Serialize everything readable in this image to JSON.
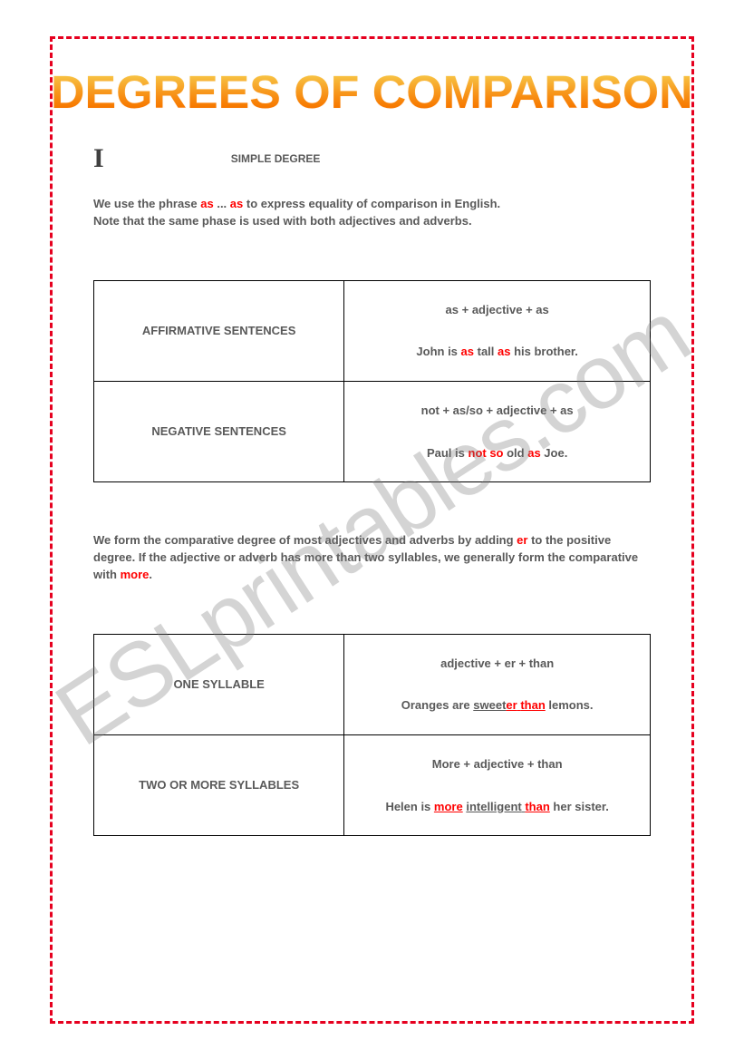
{
  "title": "DEGREES OF COMPARISON",
  "section": {
    "roman": "I",
    "label": "SIMPLE DEGREE"
  },
  "intro1": {
    "pre": "We use the phrase ",
    "as1": "as",
    "mid": " ... ",
    "as2": "as",
    "post": " to express equality of comparison in English.",
    "note": " Note that the same phase is used with both adjectives and adverbs."
  },
  "table1": {
    "r1_left": "AFFIRMATIVE SENTENCES",
    "r1_formula": "as + adjective + as",
    "r1_ex_a": "John is ",
    "r1_ex_b": "as",
    "r1_ex_c": " tall ",
    "r1_ex_d": "as",
    "r1_ex_e": " his brother.",
    "r2_left": "NEGATIVE SENTENCES",
    "r2_formula": "not + as/so + adjective + as",
    "r2_ex_a": "Paul is ",
    "r2_ex_b": "not so",
    "r2_ex_c": " old ",
    "r2_ex_d": "as",
    "r2_ex_e": " Joe."
  },
  "intro2": {
    "a": "We form the comparative degree of most adjectives and adverbs by adding ",
    "b": "er",
    "c": " to the positive degree. If the  adjective or adverb has more than two syllables, we generally form the comparative with ",
    "d": "more",
    "e": "."
  },
  "table2": {
    "r1_left": "ONE SYLLABLE",
    "r1_formula": "adjective + er + than",
    "r1_ex_a": "Oranges are ",
    "r1_ex_root": "sweet",
    "r1_ex_er": "er",
    "r1_ex_sp": " ",
    "r1_ex_than": "than",
    "r1_ex_end": " lemons.",
    "r2_left": "TWO OR MORE SYLLABLES",
    "r2_formula": "More + adjective + than",
    "r2_ex_a": "Helen is ",
    "r2_ex_more": "more",
    "r2_ex_sp": " ",
    "r2_ex_adj": "intelligent",
    "r2_ex_sp2": " ",
    "r2_ex_than": "than",
    "r2_ex_end": " her sister."
  },
  "watermark": "ESLprintables.com",
  "colors": {
    "border": "#e6001f",
    "text": "#595959",
    "highlight": "#ff0000",
    "title_g1": "#ffdf4a",
    "title_g2": "#ff7a00",
    "background": "#ffffff"
  }
}
